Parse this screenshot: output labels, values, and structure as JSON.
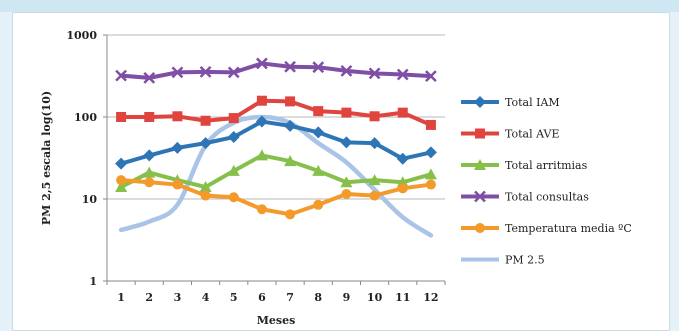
{
  "chart_data": {
    "type": "line",
    "xlabel": "Meses",
    "ylabel": "PM 2,5 escala log(10)",
    "yscale": "log",
    "ylim": [
      1,
      1000
    ],
    "ytick_labels": [
      "1",
      "10",
      "100",
      "1000"
    ],
    "x": [
      1,
      2,
      3,
      4,
      5,
      6,
      7,
      8,
      9,
      10,
      11,
      12
    ],
    "grid": "horizontal",
    "legend": "right",
    "series": [
      {
        "name": "Total IAM",
        "color": "#2e75b6",
        "marker": "diamond",
        "values": [
          27,
          34,
          42,
          48,
          57,
          88,
          78,
          65,
          49,
          48,
          31,
          37
        ]
      },
      {
        "name": "Total AVE",
        "color": "#e0443e",
        "marker": "square",
        "values": [
          100,
          100,
          102,
          90,
          97,
          158,
          155,
          118,
          113,
          102,
          113,
          80
        ]
      },
      {
        "name": "Total arritmias",
        "color": "#86bf4a",
        "marker": "triangle",
        "values": [
          14,
          21,
          17,
          14,
          22,
          34,
          29,
          22,
          16,
          17,
          16,
          20
        ]
      },
      {
        "name": "Total consultas",
        "color": "#7f4fa6",
        "marker": "x",
        "values": [
          320,
          300,
          350,
          355,
          350,
          450,
          410,
          405,
          365,
          340,
          330,
          315
        ]
      },
      {
        "name": "Temperatura media ºC",
        "color": "#f39a2b",
        "marker": "circle",
        "values": [
          17,
          16,
          15,
          11,
          10.5,
          7.5,
          6.5,
          8.5,
          11.5,
          11,
          13.5,
          15
        ]
      },
      {
        "name": "PM 2.5",
        "color": "#a9c4e6",
        "marker": "none",
        "smooth": true,
        "values": [
          4.2,
          5.3,
          8.5,
          45,
          85,
          100,
          85,
          48,
          28,
          13,
          6,
          3.6
        ]
      }
    ]
  }
}
